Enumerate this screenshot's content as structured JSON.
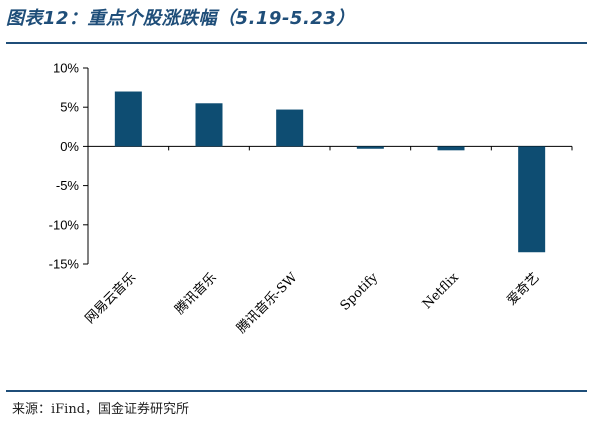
{
  "title": "图表12：重点个股涨跌幅（5.19-5.23）",
  "source": "来源：iFind，国金证券研究所",
  "colors": {
    "bar": "#0e4d72",
    "rule": "#1f4e79",
    "axis": "#000000"
  },
  "chart_data": {
    "type": "bar",
    "categories": [
      "网易云音乐",
      "腾讯音乐",
      "腾讯音乐-SW",
      "Spotify",
      "Netflix",
      "爱奇艺"
    ],
    "values": [
      7.0,
      5.5,
      4.7,
      -0.3,
      -0.5,
      -13.5
    ],
    "ylim": [
      -15,
      10
    ],
    "yticks": [
      10,
      5,
      0,
      -5,
      -10,
      -15
    ],
    "ytick_labels": [
      "10%",
      "5%",
      "0%",
      "-5%",
      "-10%",
      "-15%"
    ],
    "xlabel": "",
    "ylabel": "",
    "grid": false,
    "legend": "none"
  }
}
